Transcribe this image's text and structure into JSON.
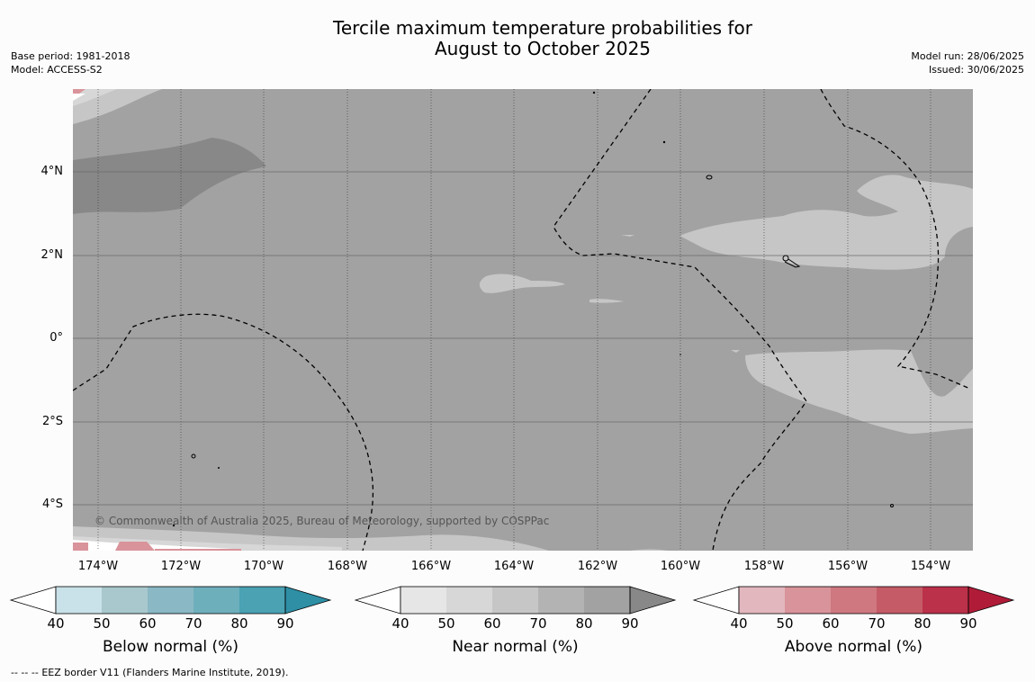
{
  "title": {
    "line1": "Tercile maximum temperature probabilities for",
    "line2": "August to October 2025"
  },
  "info_left": {
    "base_period": "Base period: 1981-2018",
    "model": "Model: ACCESS-S2"
  },
  "info_right": {
    "model_run": "Model run: 28/06/2025",
    "issued": "Issued: 30/06/2025"
  },
  "map": {
    "lon_labels": [
      "174°W",
      "172°W",
      "170°W",
      "168°W",
      "166°W",
      "164°W",
      "162°W",
      "160°W",
      "158°W",
      "156°W",
      "154°W"
    ],
    "lat_labels": [
      "4°N",
      "2°N",
      "0°",
      "2°S",
      "4°S"
    ],
    "copyright": "© Commonwealth of Australia 2025, Bureau of Meteorology, supported by COSPPac",
    "fill_colors": {
      "near_70_80": "#b3b3b3",
      "near_80_90": "#a2a2a2",
      "near_90": "#888888",
      "near_60_70": "#c6c6c6",
      "above_60": "#d9939a"
    }
  },
  "colorbars": [
    {
      "name": "Below normal (%)",
      "ticks": [
        "40",
        "50",
        "60",
        "70",
        "80",
        "90"
      ],
      "colors": [
        "#ffffff",
        "#c9e1e8",
        "#a8c8cd",
        "#8ab8c4",
        "#6eafbc",
        "#4aa2b3",
        "#2e8fa5"
      ]
    },
    {
      "name": "Near normal (%)",
      "ticks": [
        "40",
        "50",
        "60",
        "70",
        "80",
        "90"
      ],
      "colors": [
        "#ffffff",
        "#e6e6e6",
        "#d7d7d7",
        "#c6c6c6",
        "#b3b3b3",
        "#a2a2a2",
        "#888888"
      ]
    },
    {
      "name": "Above normal (%)",
      "ticks": [
        "40",
        "50",
        "60",
        "70",
        "80",
        "90"
      ],
      "colors": [
        "#ffffff",
        "#e2b7bd",
        "#d9939a",
        "#cf7880",
        "#c45b67",
        "#bb3149",
        "#b01c38"
      ]
    }
  ],
  "footer": {
    "legend_marker": "--  --  --",
    "eez_note": "EEZ border V11 (Flanders Marine Institute, 2019)."
  }
}
